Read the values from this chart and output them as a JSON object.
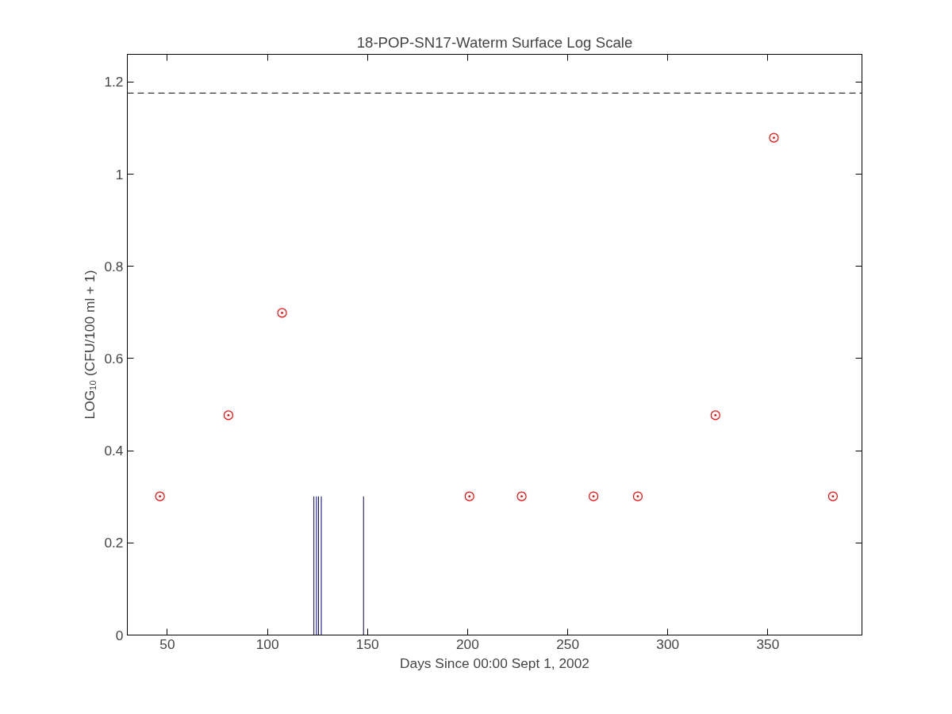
{
  "chart_data": {
    "type": "scatter",
    "title": "18-POP-SN17-Waterm Surface Log Scale",
    "xlabel": "Days Since 00:00 Sept 1, 2002",
    "ylabel": "LOG₁₀ (CFU/100 ml + 1)",
    "xlim": [
      30,
      397
    ],
    "xticks": [
      50,
      100,
      150,
      200,
      250,
      300,
      350
    ],
    "ylim": [
      0,
      1.26
    ],
    "yticks": [
      0,
      0.2,
      0.4,
      0.6,
      0.8,
      1,
      1.2
    ],
    "series": [
      {
        "color": "#ff0000",
        "x": [
          46.3,
          80.5,
          107.3,
          200.9,
          227,
          262.9,
          285,
          323.8,
          353,
          382.5
        ],
        "values": [
          0.301,
          0.477,
          0.699,
          0.301,
          0.301,
          0.301,
          0.301,
          0.477,
          1.079,
          0.301
        ]
      },
      {
        "type": "bar",
        "color": "#00008b",
        "x": [
          123.2,
          124.5,
          125.5,
          126.9,
          148
        ],
        "values": [
          0.301,
          0.301,
          0.301,
          0.301,
          0.301
        ]
      }
    ],
    "marker": "circle",
    "grid": false,
    "ref_lines": [
      {
        "axis": "y",
        "value": 1.176,
        "color": "#000000",
        "line_style": "dashed"
      }
    ]
  }
}
